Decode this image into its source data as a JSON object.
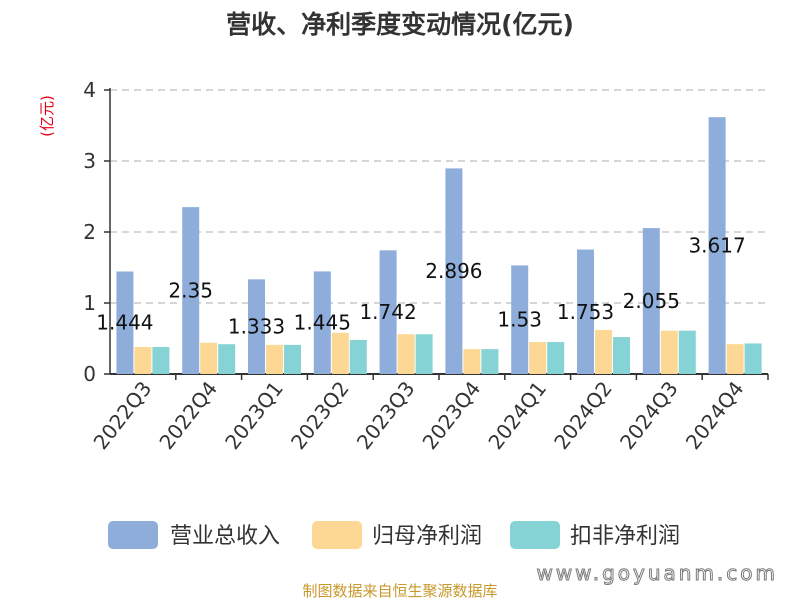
{
  "chart_data": {
    "type": "bar",
    "title": "营收、净利季度变动情况(亿元)",
    "ylabel": "(亿元)",
    "ylim": [
      0,
      4
    ],
    "yticks": [
      0,
      1,
      2,
      3,
      4
    ],
    "grid": "dashed horizontal",
    "legend": "bottom",
    "categories": [
      "2022Q3",
      "2022Q4",
      "2023Q1",
      "2023Q2",
      "2023Q3",
      "2023Q4",
      "2024Q1",
      "2024Q2",
      "2024Q3",
      "2024Q4"
    ],
    "series": [
      {
        "name": "营业总收入",
        "color": "#8eaddb",
        "show_labels": true,
        "values": [
          1.444,
          2.35,
          1.333,
          1.445,
          1.742,
          2.896,
          1.53,
          1.753,
          2.055,
          3.617
        ]
      },
      {
        "name": "归母净利润",
        "color": "#fdd794",
        "show_labels": false,
        "values": [
          0.38,
          0.44,
          0.41,
          0.58,
          0.56,
          0.35,
          0.45,
          0.62,
          0.61,
          0.42
        ]
      },
      {
        "name": "扣非净利润",
        "color": "#86d3d6",
        "show_labels": false,
        "values": [
          0.38,
          0.42,
          0.41,
          0.48,
          0.56,
          0.35,
          0.45,
          0.52,
          0.61,
          0.43
        ]
      }
    ]
  },
  "footer": "制图数据来自恒生聚源数据库",
  "watermark": "www.goyuanm.com"
}
